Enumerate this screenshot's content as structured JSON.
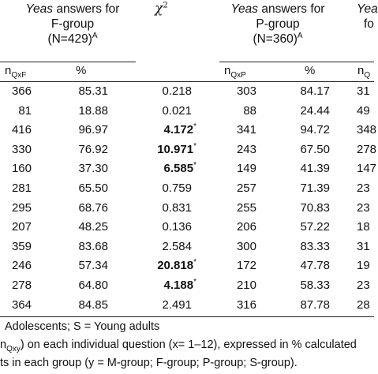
{
  "headers": {
    "f_group": {
      "line1_italic": "Yeas",
      "line1_rest": " answers for",
      "line2": "F-group",
      "line3": "(N=429)",
      "sup": "A"
    },
    "chi": {
      "symbol": "χ",
      "sup": "2"
    },
    "p_group": {
      "line1_italic": "Yeas",
      "line1_rest": " answers for",
      "line2": "P-group",
      "line3": "(N=360)",
      "sup": "A"
    },
    "s_group": {
      "line1_italic": "Yea",
      "line2": "fo"
    },
    "sub_f_n": "n",
    "sub_f_n_sub": "QxF",
    "sub_pct_f": "%",
    "sub_p_n": "n",
    "sub_p_n_sub": "QxP",
    "sub_pct_p": "%",
    "sub_s_n": "n",
    "sub_s_n_sub": "Q"
  },
  "rows": [
    {
      "nf": "366",
      "pf": "85.31",
      "chi": "0.218",
      "sig": false,
      "np": "303",
      "pp": "84.17",
      "ns": "31"
    },
    {
      "nf": "81",
      "pf": "18.88",
      "chi": "0.021",
      "sig": false,
      "np": "88",
      "pp": "24.44",
      "ns": "49"
    },
    {
      "nf": "416",
      "pf": "96.97",
      "chi": "4.172",
      "sig": true,
      "np": "341",
      "pp": "94.72",
      "ns": "348"
    },
    {
      "nf": "330",
      "pf": "76.92",
      "chi": "10.971",
      "sig": true,
      "np": "243",
      "pp": "67.50",
      "ns": "278"
    },
    {
      "nf": "160",
      "pf": "37.30",
      "chi": "6.585",
      "sig": true,
      "np": "149",
      "pp": "41.39",
      "ns": "147"
    },
    {
      "nf": "281",
      "pf": "65.50",
      "chi": "0.759",
      "sig": false,
      "np": "257",
      "pp": "71.39",
      "ns": "23"
    },
    {
      "nf": "295",
      "pf": "68.76",
      "chi": "0.831",
      "sig": false,
      "np": "255",
      "pp": "70.83",
      "ns": "23"
    },
    {
      "nf": "207",
      "pf": "48.25",
      "chi": "0.136",
      "sig": false,
      "np": "206",
      "pp": "57.22",
      "ns": "18"
    },
    {
      "nf": "359",
      "pf": "83.68",
      "chi": "2.584",
      "sig": false,
      "np": "300",
      "pp": "83.33",
      "ns": "31"
    },
    {
      "nf": "246",
      "pf": "57.34",
      "chi": "20.818",
      "sig": true,
      "np": "172",
      "pp": "47.78",
      "ns": "19"
    },
    {
      "nf": "278",
      "pf": "64.80",
      "chi": "4.188",
      "sig": true,
      "np": "210",
      "pp": "58.33",
      "ns": "23"
    },
    {
      "nf": "364",
      "pf": "84.85",
      "chi": "2.491",
      "sig": false,
      "np": "316",
      "pp": "87.78",
      "ns": "28"
    }
  ],
  "star": "*",
  "footnotes": {
    "line1": "Adolescents; S = Young adults",
    "line2_pre": "n",
    "line2_sub": "Qxy",
    "line2_rest": ") on each individual question (x= 1–12), expressed in % calculated",
    "line3": "ts in each group (y = M-group; F-group; P-group; S-group)."
  }
}
